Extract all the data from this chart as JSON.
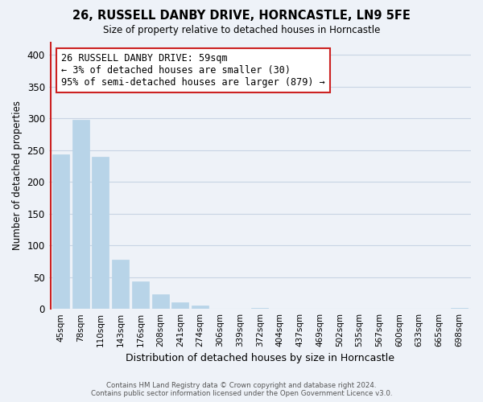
{
  "title": "26, RUSSELL DANBY DRIVE, HORNCASTLE, LN9 5FE",
  "subtitle": "Size of property relative to detached houses in Horncastle",
  "xlabel": "Distribution of detached houses by size in Horncastle",
  "ylabel": "Number of detached properties",
  "bar_labels": [
    "45sqm",
    "78sqm",
    "110sqm",
    "143sqm",
    "176sqm",
    "208sqm",
    "241sqm",
    "274sqm",
    "306sqm",
    "339sqm",
    "372sqm",
    "404sqm",
    "437sqm",
    "469sqm",
    "502sqm",
    "535sqm",
    "567sqm",
    "600sqm",
    "633sqm",
    "665sqm",
    "698sqm"
  ],
  "bar_values": [
    243,
    298,
    240,
    77,
    43,
    23,
    10,
    5,
    0,
    0,
    2,
    0,
    0,
    0,
    0,
    0,
    0,
    0,
    0,
    0,
    2
  ],
  "bar_color": "#b8d4e8",
  "highlight_bar_color": "#cc2222",
  "ylim": [
    0,
    420
  ],
  "yticks": [
    0,
    50,
    100,
    150,
    200,
    250,
    300,
    350,
    400
  ],
  "grid_color": "#c8d4e4",
  "annotation_line1": "26 RUSSELL DANBY DRIVE: 59sqm",
  "annotation_line2": "← 3% of detached houses are smaller (30)",
  "annotation_line3": "95% of semi-detached houses are larger (879) →",
  "footer_line1": "Contains HM Land Registry data © Crown copyright and database right 2024.",
  "footer_line2": "Contains public sector information licensed under the Open Government Licence v3.0.",
  "bg_color": "#eef2f8"
}
